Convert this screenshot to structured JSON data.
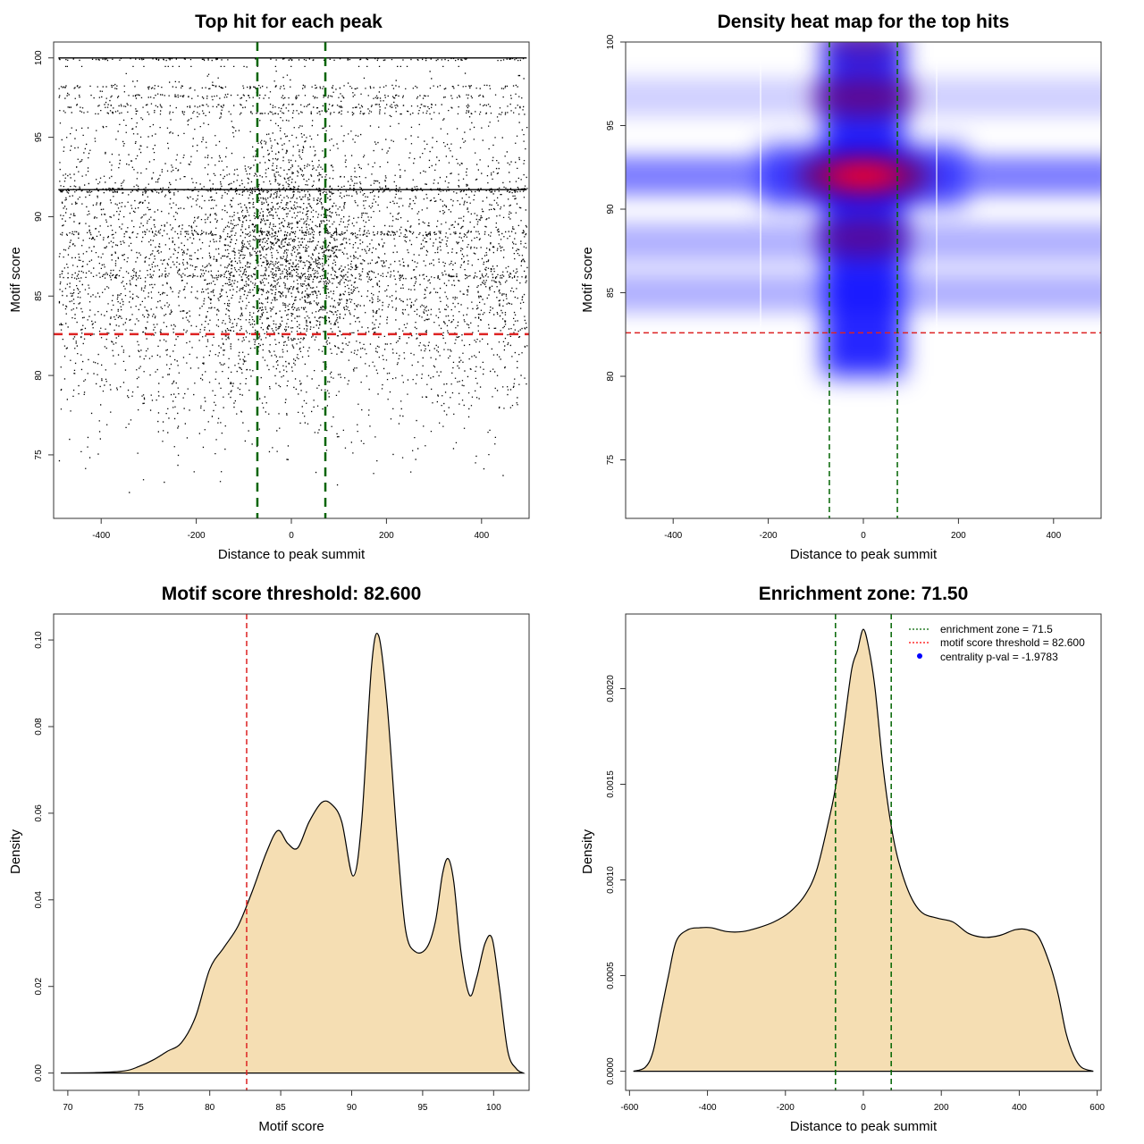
{
  "chart_data": [
    {
      "type": "scatter",
      "title": "Top hit for each peak",
      "xlabel": "Distance to peak summit",
      "ylabel": "Motif score",
      "xlim": [
        -500,
        500
      ],
      "ylim": [
        71,
        101
      ],
      "xticks": [
        "-400",
        "-200",
        "0",
        "200",
        "400"
      ],
      "yticks": [
        "75",
        "80",
        "85",
        "90",
        "95",
        "100"
      ],
      "enrichment_zone_x": [
        -71.5,
        71.5
      ],
      "threshold_y": 82.6,
      "points_description_values": {
        "x_range": [
          -500,
          500
        ],
        "y_range": [
          71.5,
          100
        ],
        "dense_score_rows": [
          100,
          98.2,
          97.6,
          97,
          96.6,
          91.7,
          89,
          86.3
        ]
      }
    },
    {
      "type": "heatmap",
      "title": "Density heat map for the top hits",
      "xlabel": "Distance to peak summit",
      "ylabel": "Motif score",
      "xlim": [
        -500,
        500
      ],
      "ylim": [
        71.5,
        100
      ],
      "xticks": [
        "-400",
        "-200",
        "0",
        "200",
        "400"
      ],
      "yticks": [
        "75",
        "80",
        "85",
        "90",
        "95",
        "100"
      ],
      "enrichment_zone_x": [
        -71.5,
        71.5
      ],
      "threshold_y": 82.6,
      "hotspots": [
        {
          "x": 0,
          "y": 92,
          "intensity": 1.0
        },
        {
          "x": 0,
          "y": 96.7,
          "intensity": 0.7
        },
        {
          "x": 0,
          "y": 88.3,
          "intensity": 0.62
        },
        {
          "x": 0,
          "y": 100,
          "intensity": 0.45
        }
      ],
      "bands": [
        {
          "y": 92,
          "intensity": 0.5
        },
        {
          "y": 96.7,
          "intensity": 0.18
        },
        {
          "y": 88,
          "intensity": 0.3
        },
        {
          "y": 85,
          "intensity": 0.3
        }
      ]
    },
    {
      "type": "area",
      "title": "Motif score threshold: 82.600",
      "xlabel": "Motif score",
      "ylabel": "Density",
      "xlim": [
        69,
        102.5
      ],
      "ylim": [
        -0.004,
        0.106
      ],
      "xticks": [
        "70",
        "75",
        "80",
        "85",
        "90",
        "95",
        "100"
      ],
      "yticks": [
        "0.00",
        "0.02",
        "0.04",
        "0.06",
        "0.08",
        "0.10"
      ],
      "threshold_x": 82.6,
      "x": [
        69.5,
        72,
        74,
        75,
        76,
        77,
        78,
        79,
        80,
        81,
        82,
        83,
        84,
        84.8,
        85.5,
        86.2,
        87,
        87.9,
        88.6,
        89.3,
        90.1,
        90.7,
        91.4,
        91.9,
        92.5,
        93.2,
        93.8,
        94.5,
        95.3,
        95.9,
        96.4,
        96.8,
        97.2,
        97.7,
        98.3,
        98.8,
        99.4,
        99.9,
        100.4,
        101,
        101.6,
        102.1
      ],
      "y": [
        0.0,
        0.0001,
        0.0005,
        0.0015,
        0.003,
        0.005,
        0.007,
        0.013,
        0.024,
        0.029,
        0.034,
        0.042,
        0.051,
        0.056,
        0.053,
        0.052,
        0.058,
        0.0625,
        0.062,
        0.058,
        0.0455,
        0.058,
        0.094,
        0.101,
        0.085,
        0.054,
        0.033,
        0.028,
        0.029,
        0.035,
        0.046,
        0.0495,
        0.044,
        0.028,
        0.018,
        0.022,
        0.03,
        0.031,
        0.02,
        0.005,
        0.001,
        0.0
      ]
    },
    {
      "type": "area",
      "title": "Enrichment zone: 71.50",
      "xlabel": "Distance to peak summit",
      "ylabel": "Density",
      "xlim": [
        -610,
        610
      ],
      "ylim": [
        -0.0001,
        0.00239
      ],
      "xticks": [
        "-600",
        "-400",
        "-200",
        "0",
        "200",
        "400",
        "600"
      ],
      "yticks": [
        "0.0000",
        "0.0005",
        "0.0010",
        "0.0015",
        "0.0020"
      ],
      "enrichment_zone_x": [
        -71.5,
        71.5
      ],
      "x": [
        -590,
        -560,
        -540,
        -520,
        -500,
        -480,
        -450,
        -420,
        -390,
        -350,
        -310,
        -270,
        -230,
        -190,
        -150,
        -120,
        -90,
        -70,
        -50,
        -30,
        -15,
        0,
        15,
        30,
        50,
        70,
        90,
        120,
        150,
        190,
        230,
        270,
        310,
        350,
        390,
        420,
        450,
        480,
        500,
        520,
        540,
        560,
        590
      ],
      "y": [
        0.0,
        2e-05,
        0.0001,
        0.0003,
        0.0005,
        0.00068,
        0.00074,
        0.00075,
        0.00075,
        0.00073,
        0.00073,
        0.00075,
        0.00078,
        0.00083,
        0.00092,
        0.00105,
        0.0013,
        0.0015,
        0.0018,
        0.0021,
        0.0022,
        0.00231,
        0.0022,
        0.002,
        0.0016,
        0.0013,
        0.0011,
        0.00092,
        0.00083,
        0.0008,
        0.00078,
        0.00072,
        0.0007,
        0.00071,
        0.00074,
        0.00074,
        0.0007,
        0.00055,
        0.0004,
        0.0002,
        8e-05,
        2e-05,
        0.0
      ],
      "legend": {
        "placement": "top-right",
        "entries": [
          {
            "label": "enrichment zone = 71.5",
            "color": "#006400",
            "style": "dotted-line"
          },
          {
            "label": "motif score threshold = 82.600",
            "color": "#ff0000",
            "style": "dotted-line"
          },
          {
            "label": "centrality p-val = -1.9783",
            "color": "#0000ff",
            "style": "point"
          }
        ]
      }
    }
  ],
  "colors": {
    "fill": "#f5deb3",
    "green": "#006400",
    "red": "#dd2222",
    "blue": "#0000ff"
  }
}
